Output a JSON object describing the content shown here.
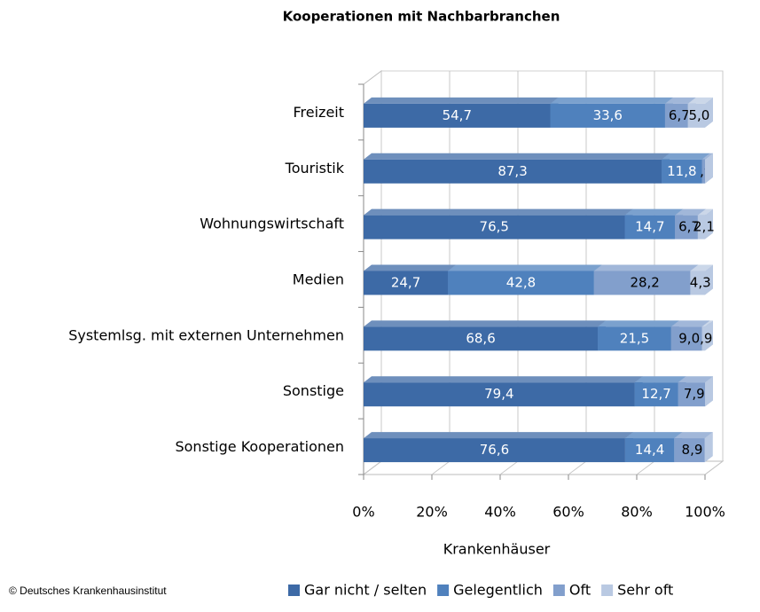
{
  "chart_data": {
    "type": "bar",
    "orientation": "horizontal",
    "stacked": true,
    "title": "Kooperationen mit Nachbarbranchen",
    "xlabel": "Krankenhäuser",
    "source": "© Deutsches  Krankenhausinstitut",
    "categories": [
      "Freizeit",
      "Touristik",
      "Wohnungswirtschaft",
      "Medien",
      "Systemlsg. mit externen Unternehmen",
      "Sonstige",
      "Sonstige Kooperationen"
    ],
    "series": [
      {
        "name": "Gar nicht / selten",
        "color": "#3d6aa6",
        "values": [
          54.7,
          87.3,
          76.5,
          24.7,
          68.6,
          79.4,
          76.6
        ],
        "value_labels": [
          "54,7",
          "87,3",
          "76,5",
          "24,7",
          "68,6",
          "79,4",
          "76,6"
        ]
      },
      {
        "name": "Gelegentlich",
        "color": "#4f81bd",
        "values": [
          33.6,
          11.8,
          14.7,
          42.8,
          21.5,
          12.7,
          14.4
        ],
        "value_labels": [
          "33,6",
          "11,8",
          "14,7",
          "42,8",
          "21,5",
          "12,7",
          "14,4"
        ]
      },
      {
        "name": "Oft",
        "color": "#829fcc",
        "values": [
          6.7,
          0.9,
          6.7,
          28.2,
          9.0,
          7.9,
          8.9
        ],
        "value_labels": [
          "6,7",
          ",9",
          "6,7",
          "28,2",
          "9,0",
          "7,9",
          "8,9"
        ]
      },
      {
        "name": "Sehr oft",
        "color": "#b9c9e2",
        "values": [
          5.0,
          0,
          2.1,
          4.3,
          0.9,
          0,
          0
        ],
        "value_labels": [
          "5,0",
          null,
          "2,1",
          "4,3",
          ",9",
          null,
          null
        ]
      }
    ],
    "xlim": [
      0,
      100
    ],
    "xticks": [
      {
        "value": 0,
        "label": "0%"
      },
      {
        "value": 20,
        "label": "20%"
      },
      {
        "value": 40,
        "label": "40%"
      },
      {
        "value": 60,
        "label": "60%"
      },
      {
        "value": 80,
        "label": "80%"
      },
      {
        "value": 100,
        "label": "100%"
      }
    ],
    "grid": true,
    "legend": "bottom"
  }
}
